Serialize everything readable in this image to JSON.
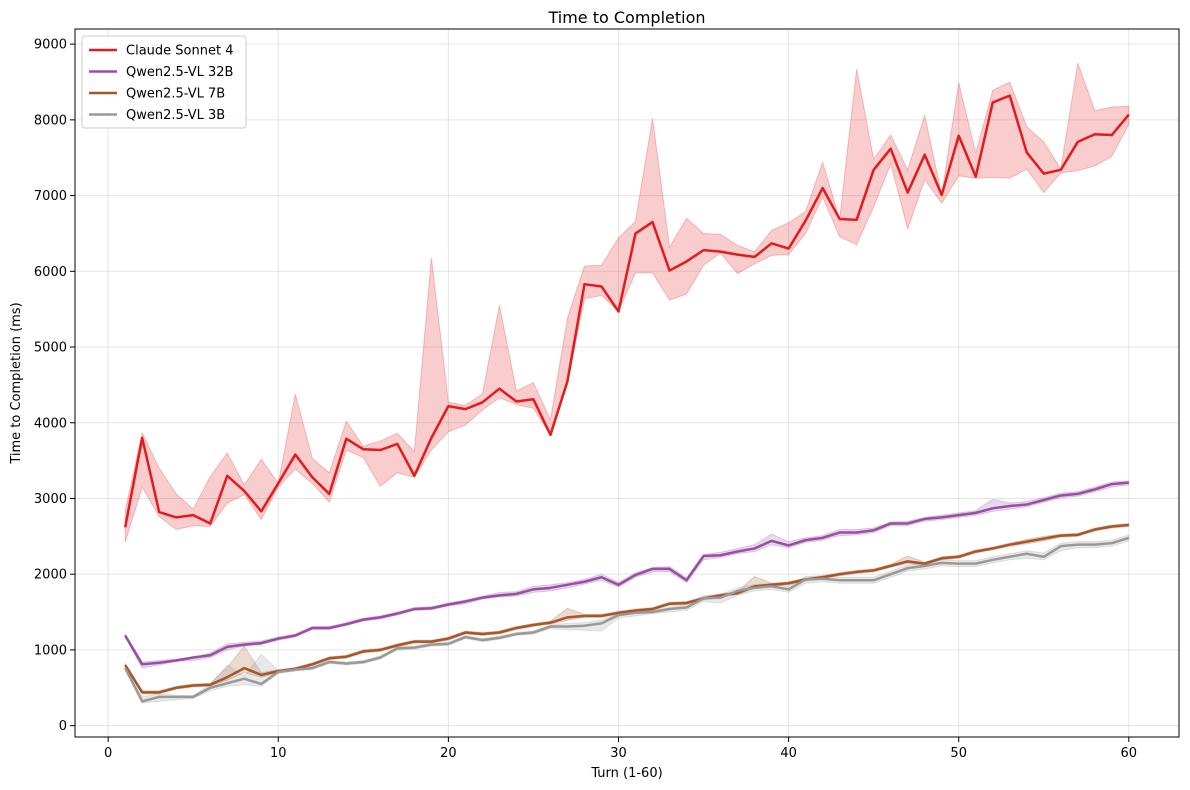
{
  "chart_data": {
    "type": "line",
    "title": "Time to Completion",
    "xlabel": "Turn (1-60)",
    "ylabel": "Time to Completion (ms)",
    "xlim": [
      -1.95,
      62.95
    ],
    "ylim": [
      -150,
      9200
    ],
    "xticks": [
      0,
      10,
      20,
      30,
      40,
      50,
      60
    ],
    "yticks": [
      0,
      1000,
      2000,
      3000,
      4000,
      5000,
      6000,
      7000,
      8000,
      9000
    ],
    "grid": true,
    "legend_position": "upper-left",
    "x": [
      1,
      2,
      3,
      4,
      5,
      6,
      7,
      8,
      9,
      10,
      11,
      12,
      13,
      14,
      15,
      16,
      17,
      18,
      19,
      20,
      21,
      22,
      23,
      24,
      25,
      26,
      27,
      28,
      29,
      30,
      31,
      32,
      33,
      34,
      35,
      36,
      37,
      38,
      39,
      40,
      41,
      42,
      43,
      44,
      45,
      46,
      47,
      48,
      49,
      50,
      51,
      52,
      53,
      54,
      55,
      56,
      57,
      58,
      59,
      60
    ],
    "series": [
      {
        "name": "Claude Sonnet 4",
        "color": "#e41a1c",
        "values": [
          2620,
          3800,
          2820,
          2750,
          2780,
          2670,
          3300,
          3100,
          2830,
          3200,
          3580,
          3280,
          3060,
          3790,
          3650,
          3640,
          3720,
          3300,
          3800,
          4220,
          4180,
          4270,
          4450,
          4280,
          4310,
          3840,
          4550,
          5830,
          5800,
          5470,
          6500,
          6650,
          6010,
          6130,
          6280,
          6260,
          6220,
          6190,
          6370,
          6300,
          6670,
          7100,
          6690,
          6680,
          7340,
          7620,
          7040,
          7540,
          7010,
          7790,
          7250,
          8230,
          8320,
          7570,
          7290,
          7340,
          7710,
          7810,
          7800,
          8070
        ],
        "band_low": [
          2420,
          3150,
          2760,
          2590,
          2640,
          2630,
          2940,
          3050,
          2720,
          3150,
          3390,
          3200,
          2950,
          3640,
          3540,
          3160,
          3340,
          3280,
          3640,
          3880,
          3970,
          4170,
          4330,
          4240,
          4190,
          3840,
          4520,
          5640,
          5680,
          5470,
          5980,
          5980,
          5620,
          5700,
          6080,
          6240,
          5970,
          6100,
          6210,
          6220,
          6500,
          6980,
          6460,
          6350,
          6850,
          7420,
          6560,
          7210,
          6900,
          7260,
          7230,
          7240,
          7230,
          7350,
          7040,
          7300,
          7330,
          7390,
          7520,
          7940
        ],
        "band_high": [
          2840,
          3870,
          3400,
          3060,
          2860,
          3290,
          3600,
          3180,
          3520,
          3200,
          4380,
          3530,
          3340,
          4020,
          3690,
          3760,
          3860,
          3620,
          6180,
          4270,
          4230,
          4380,
          5550,
          4420,
          4530,
          4040,
          5380,
          6070,
          6080,
          6440,
          6660,
          8020,
          6320,
          6700,
          6500,
          6490,
          6340,
          6260,
          6540,
          6640,
          6790,
          7440,
          6690,
          8670,
          7480,
          7800,
          7340,
          8060,
          7010,
          8490,
          7560,
          8390,
          8500,
          7910,
          7710,
          7350,
          8750,
          8120,
          8170,
          8180
        ]
      },
      {
        "name": "Qwen2.5-VL 32B",
        "color": "#984ea3",
        "values": [
          1190,
          810,
          830,
          860,
          900,
          930,
          1040,
          1070,
          1090,
          1150,
          1190,
          1290,
          1290,
          1340,
          1400,
          1430,
          1480,
          1540,
          1550,
          1600,
          1640,
          1690,
          1720,
          1740,
          1800,
          1820,
          1860,
          1900,
          1960,
          1860,
          1990,
          2070,
          2070,
          1920,
          2240,
          2250,
          2300,
          2340,
          2440,
          2380,
          2450,
          2480,
          2550,
          2550,
          2580,
          2670,
          2670,
          2730,
          2750,
          2780,
          2810,
          2870,
          2900,
          2920,
          2980,
          3040,
          3060,
          3120,
          3190,
          3210
        ],
        "band_low": [
          1170,
          760,
          800,
          850,
          860,
          900,
          1000,
          1050,
          1070,
          1130,
          1170,
          1270,
          1270,
          1320,
          1380,
          1410,
          1460,
          1520,
          1530,
          1580,
          1610,
          1670,
          1700,
          1710,
          1760,
          1780,
          1820,
          1870,
          1920,
          1830,
          1960,
          2030,
          2030,
          1890,
          2190,
          2220,
          2270,
          2300,
          2390,
          2350,
          2420,
          2450,
          2510,
          2520,
          2550,
          2640,
          2640,
          2700,
          2720,
          2750,
          2780,
          2830,
          2860,
          2890,
          2950,
          3010,
          3030,
          3090,
          3150,
          3180
        ],
        "band_high": [
          1210,
          840,
          860,
          880,
          900,
          960,
          1080,
          1100,
          1120,
          1170,
          1210,
          1310,
          1310,
          1360,
          1420,
          1450,
          1500,
          1560,
          1570,
          1620,
          1660,
          1710,
          1760,
          1770,
          1840,
          1860,
          1890,
          1930,
          2000,
          1890,
          2020,
          2090,
          2100,
          1950,
          2260,
          2290,
          2340,
          2390,
          2530,
          2430,
          2480,
          2510,
          2590,
          2590,
          2610,
          2690,
          2700,
          2750,
          2780,
          2810,
          2840,
          2990,
          2940,
          2960,
          3010,
          3070,
          3090,
          3150,
          3220,
          3230
        ]
      },
      {
        "name": "Qwen2.5-VL 7B",
        "color": "#a65628",
        "values": [
          800,
          440,
          440,
          500,
          530,
          540,
          640,
          760,
          670,
          720,
          750,
          810,
          890,
          910,
          980,
          1000,
          1060,
          1110,
          1110,
          1150,
          1230,
          1210,
          1230,
          1290,
          1330,
          1360,
          1430,
          1450,
          1450,
          1490,
          1520,
          1540,
          1610,
          1620,
          1680,
          1720,
          1750,
          1840,
          1860,
          1880,
          1930,
          1960,
          2000,
          2030,
          2050,
          2110,
          2170,
          2140,
          2210,
          2230,
          2300,
          2340,
          2390,
          2430,
          2470,
          2510,
          2520,
          2590,
          2630,
          2650
        ],
        "band_low": [
          780,
          420,
          420,
          480,
          510,
          520,
          600,
          700,
          640,
          700,
          730,
          790,
          870,
          890,
          960,
          980,
          1040,
          1090,
          1090,
          1130,
          1210,
          1190,
          1210,
          1270,
          1310,
          1340,
          1390,
          1430,
          1430,
          1470,
          1500,
          1520,
          1590,
          1600,
          1660,
          1700,
          1730,
          1810,
          1840,
          1860,
          1910,
          1940,
          1980,
          2010,
          2030,
          2090,
          2140,
          2120,
          2190,
          2210,
          2280,
          2320,
          2370,
          2400,
          2440,
          2490,
          2500,
          2570,
          2610,
          2630
        ],
        "band_high": [
          820,
          460,
          460,
          520,
          550,
          560,
          770,
          1050,
          700,
          740,
          770,
          830,
          910,
          930,
          1000,
          1020,
          1080,
          1130,
          1130,
          1170,
          1250,
          1230,
          1250,
          1310,
          1350,
          1380,
          1550,
          1470,
          1470,
          1510,
          1540,
          1560,
          1630,
          1640,
          1700,
          1740,
          1770,
          1970,
          1880,
          1900,
          1950,
          1980,
          2020,
          2050,
          2070,
          2130,
          2240,
          2160,
          2230,
          2250,
          2320,
          2360,
          2410,
          2460,
          2500,
          2530,
          2540,
          2610,
          2650,
          2670
        ]
      },
      {
        "name": "Qwen2.5-VL 3B",
        "color": "#999999",
        "values": [
          760,
          320,
          380,
          380,
          380,
          500,
          560,
          620,
          550,
          710,
          740,
          760,
          840,
          820,
          840,
          900,
          1020,
          1030,
          1070,
          1080,
          1170,
          1130,
          1160,
          1210,
          1230,
          1310,
          1310,
          1320,
          1350,
          1460,
          1490,
          1500,
          1540,
          1560,
          1680,
          1690,
          1780,
          1820,
          1840,
          1800,
          1930,
          1940,
          1920,
          1920,
          1920,
          2000,
          2080,
          2110,
          2150,
          2140,
          2140,
          2190,
          2230,
          2270,
          2230,
          2370,
          2390,
          2390,
          2410,
          2480
        ],
        "band_low": [
          740,
          300,
          320,
          340,
          360,
          460,
          520,
          540,
          520,
          690,
          720,
          740,
          820,
          800,
          820,
          880,
          1000,
          1010,
          1050,
          1060,
          1150,
          1110,
          1140,
          1190,
          1210,
          1280,
          1270,
          1260,
          1250,
          1420,
          1450,
          1480,
          1500,
          1520,
          1640,
          1620,
          1720,
          1780,
          1800,
          1760,
          1880,
          1900,
          1880,
          1880,
          1880,
          1960,
          2040,
          2070,
          2110,
          2100,
          2100,
          2150,
          2190,
          2210,
          2190,
          2310,
          2350,
          2350,
          2370,
          2440
        ],
        "band_high": [
          780,
          380,
          420,
          400,
          400,
          540,
          800,
          650,
          940,
          730,
          760,
          780,
          860,
          840,
          860,
          920,
          1040,
          1050,
          1090,
          1100,
          1190,
          1150,
          1180,
          1230,
          1250,
          1330,
          1350,
          1360,
          1390,
          1480,
          1510,
          1520,
          1560,
          1600,
          1720,
          1730,
          1820,
          1860,
          1880,
          1840,
          1970,
          1980,
          1960,
          1960,
          1960,
          2040,
          2120,
          2150,
          2190,
          2180,
          2180,
          2230,
          2270,
          2310,
          2280,
          2410,
          2430,
          2430,
          2450,
          2520
        ]
      }
    ]
  }
}
